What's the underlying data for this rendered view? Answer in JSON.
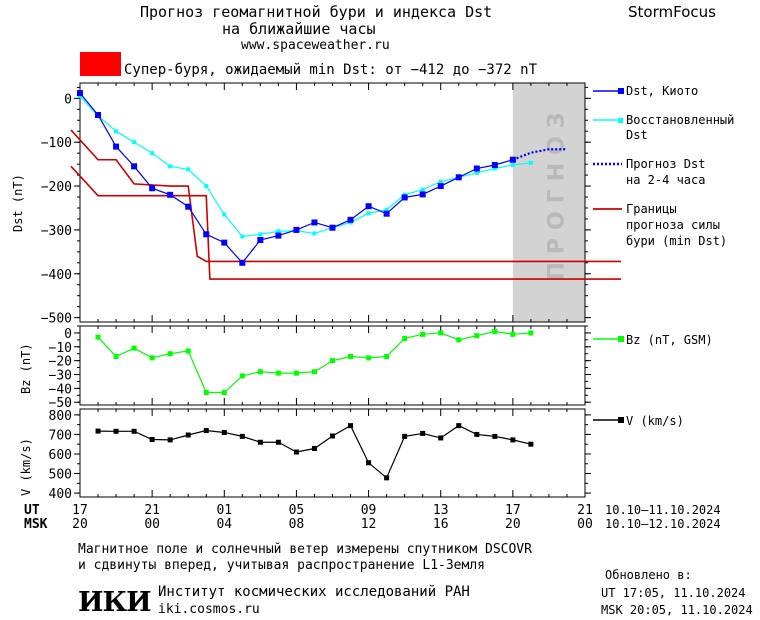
{
  "header": {
    "title_line1": "Прогноз геомагнитной бури и индекса Dst",
    "title_line2": "на ближайшие часы",
    "website": "www.spaceweather.ru",
    "brand": "StormFocus",
    "storm_label": "Супер-буря, ожидаемый min Dst: от −412 до −372 nT",
    "storm_color": "#ff0000"
  },
  "colors": {
    "dst": "#0000ff",
    "dst_restored": "#00ffff",
    "boundary": "#cc0000",
    "bz": "#00ff00",
    "speed": "#000000",
    "forecast_band": "#d3d3d3"
  },
  "forecast_band_text": "прогноз",
  "legend": {
    "dst_kyoto": "Dst, Киото",
    "dst_restored_1": "Восстановленный",
    "dst_restored_2": "Dst",
    "dst_forecast_1": "Прогноз Dst",
    "dst_forecast_2": "на 2-4 часа",
    "boundary_1": "Границы",
    "boundary_2": "прогноза силы",
    "boundary_3": "бури (min Dst)",
    "bz": "Bz (nT, GSM)",
    "v": "V (km/s)"
  },
  "time_axis": {
    "ut_label": "UT",
    "msk_label": "MSK",
    "ut_ticks": [
      "17",
      "21",
      "01",
      "05",
      "09",
      "13",
      "17",
      "21"
    ],
    "msk_ticks": [
      "20",
      "00",
      "04",
      "08",
      "12",
      "16",
      "20",
      "00"
    ],
    "ut_range": "10.10—11.10.2024",
    "msk_range": "10.10—12.10.2024"
  },
  "footer": {
    "note_line1": "Магнитное поле и солнечный ветер измерены спутником DSCOVR",
    "note_line2": "и сдвинуты вперед, учитывая распространение L1-Земля",
    "updated_label": "Обновлено в:",
    "updated_ut": "UT  17:05, 11.10.2024",
    "updated_msk": "MSK 20:05, 11.10.2024",
    "logo": "ИКИ",
    "institute": "Институт космических исследований РАН",
    "institute_site": "iki.cosmos.ru"
  },
  "chart_data": [
    {
      "type": "line",
      "ylabel": "Dst (nT)",
      "ylim": [
        -510,
        35
      ],
      "yticks": [
        0,
        -100,
        -200,
        -300,
        -400,
        -500
      ],
      "ytick_labels": [
        "0",
        "−100",
        "−200",
        "−300",
        "−400",
        "−500"
      ],
      "x_hours": [
        0,
        1,
        2,
        3,
        4,
        5,
        6,
        7,
        8,
        9,
        10,
        11,
        12,
        13,
        14,
        15,
        16,
        17,
        18,
        19,
        20,
        21,
        22,
        23,
        24
      ],
      "series": [
        {
          "name": "Dst, Киото",
          "x": [
            0,
            1,
            2,
            3,
            4,
            5,
            6,
            7,
            8,
            9,
            10,
            11,
            12,
            13,
            14,
            15,
            16,
            17,
            18,
            19,
            20,
            21,
            22,
            23,
            24
          ],
          "values": [
            12,
            -38,
            -110,
            -155,
            -205,
            -220,
            -247,
            -310,
            -329,
            -375,
            -323,
            -313,
            -300,
            -283,
            -295,
            -277,
            -246,
            -263,
            -226,
            -219,
            -200,
            -180,
            -160,
            -152,
            -140
          ]
        },
        {
          "name": "Восстановленный Dst",
          "x": [
            0,
            1,
            2,
            3,
            4,
            5,
            6,
            7,
            8,
            9,
            10,
            11,
            12,
            13,
            14,
            15,
            16,
            17,
            18,
            19,
            20,
            21,
            22,
            23,
            24,
            25
          ],
          "values": [
            5,
            -40,
            -75,
            -100,
            -125,
            -155,
            -162,
            -200,
            -265,
            -315,
            -310,
            -303,
            -302,
            -308,
            -295,
            -283,
            -262,
            -254,
            -220,
            -208,
            -190,
            -180,
            -170,
            -160,
            -152,
            -147
          ]
        },
        {
          "name": "Прогноз Dst на 2-4 часа",
          "x": [
            24,
            25,
            26,
            27
          ],
          "values": [
            -140,
            -124,
            -116,
            -116
          ]
        },
        {
          "name": "Границы прогноза силы бури (min Dst)",
          "x": [
            -0.5,
            1,
            4,
            5,
            6,
            7,
            7.2,
            30
          ],
          "values": [
            -155,
            -222,
            -222,
            -222,
            -222,
            -222,
            -412,
            -412
          ]
        },
        {
          "name": "Границы прогноза силы бури (min Dst)",
          "x": [
            -0.5,
            1,
            2,
            3,
            5,
            6,
            6.5,
            7,
            7.2,
            30
          ],
          "values": [
            -72,
            -140,
            -140,
            -195,
            -200,
            -200,
            -360,
            -372,
            -372,
            -372
          ]
        }
      ],
      "forecast_x_range": [
        24,
        28
      ]
    },
    {
      "type": "line",
      "ylabel": "Bz (nT)",
      "ylim": [
        -52,
        5
      ],
      "yticks": [
        0,
        -10,
        -20,
        -30,
        -40,
        -50
      ],
      "ytick_labels": [
        "0",
        "−10",
        "−20",
        "−30",
        "−40",
        "−50"
      ],
      "series": [
        {
          "name": "Bz (nT, GSM)",
          "x": [
            1,
            2,
            3,
            4,
            5,
            6,
            7,
            8,
            9,
            10,
            11,
            12,
            13,
            14,
            15,
            16,
            17,
            18,
            19,
            20,
            21,
            22,
            23,
            24,
            25
          ],
          "values": [
            -3,
            -17,
            -11,
            -18,
            -15,
            -13,
            -43,
            -43,
            -31,
            -28,
            -29,
            -29,
            -28,
            -20,
            -17,
            -18,
            -17,
            -4,
            -1,
            0,
            -5,
            -2,
            1,
            -1,
            0
          ]
        }
      ]
    },
    {
      "type": "line",
      "ylabel": "V (km/s)",
      "ylim": [
        380,
        830
      ],
      "yticks": [
        800,
        700,
        600,
        500,
        400
      ],
      "ytick_labels": [
        "800",
        "700",
        "600",
        "500",
        "400"
      ],
      "series": [
        {
          "name": "V (km/s)",
          "x": [
            1,
            2,
            3,
            4,
            5,
            6,
            7,
            8,
            9,
            10,
            11,
            12,
            13,
            14,
            15,
            16,
            17,
            18,
            19,
            20,
            21,
            22,
            23,
            24,
            25
          ],
          "values": [
            717,
            716,
            716,
            674,
            672,
            697,
            720,
            710,
            690,
            660,
            660,
            610,
            628,
            692,
            745,
            555,
            478,
            690,
            705,
            682,
            745,
            700,
            690,
            672,
            650
          ]
        }
      ]
    }
  ]
}
